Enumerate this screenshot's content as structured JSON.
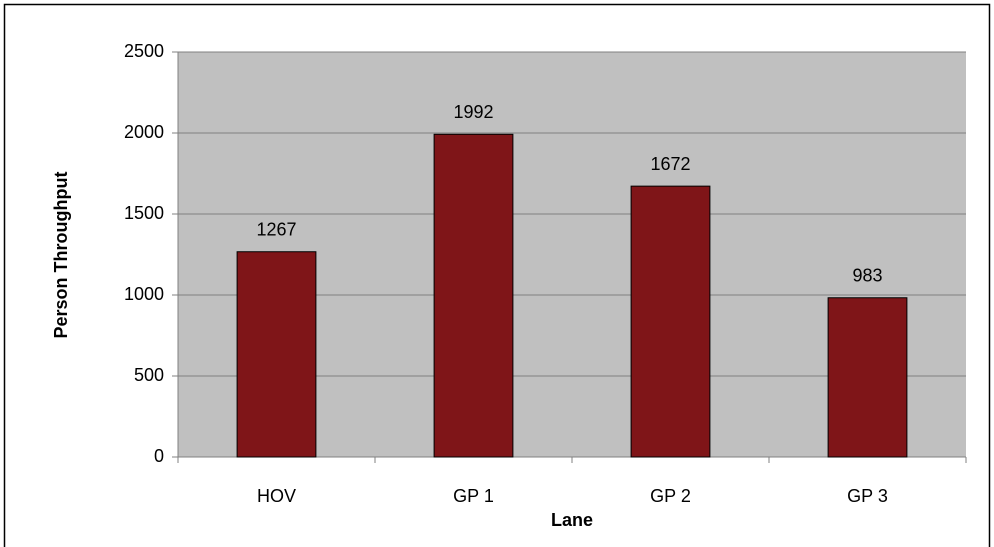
{
  "chart_data": {
    "type": "bar",
    "xlabel": "Lane",
    "ylabel": "Person Throughput",
    "categories": [
      "HOV",
      "GP 1",
      "GP 2",
      "GP 3"
    ],
    "values": [
      1267,
      1992,
      1672,
      983
    ],
    "color": "#7f1518",
    "ylim": [
      0,
      2500
    ],
    "yticks": [
      0,
      500,
      1000,
      1500,
      2000,
      2500
    ],
    "grid": true
  }
}
